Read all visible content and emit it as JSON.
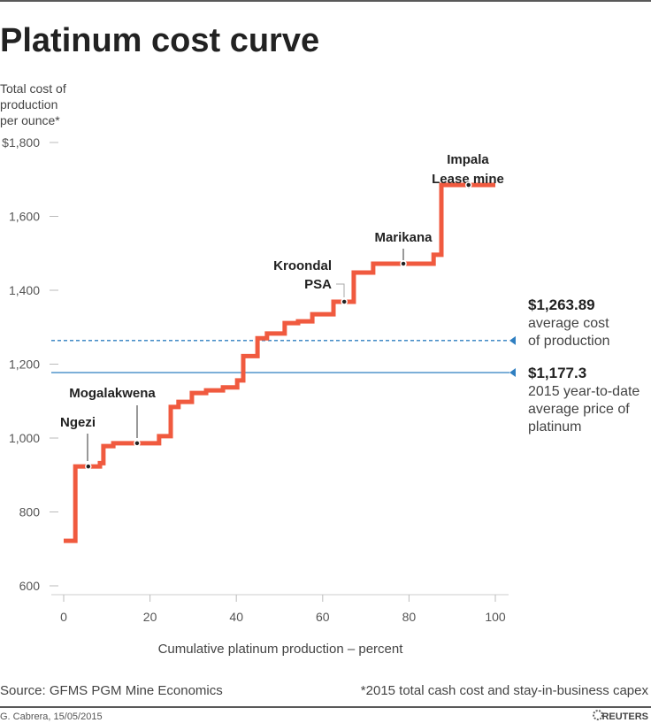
{
  "chart_data": {
    "type": "line",
    "style": "step",
    "title": "Platinum cost curve",
    "ylabel": [
      "Total cost of",
      "production",
      "per ounce*"
    ],
    "xlabel": "Cumulative platinum production – percent",
    "xlim": [
      0,
      100
    ],
    "ylim": [
      600,
      1800
    ],
    "xticks": [
      0,
      20,
      40,
      60,
      80,
      100
    ],
    "xtick_labels": [
      "0",
      "20",
      "40",
      "60",
      "80",
      "100"
    ],
    "yticks": [
      600,
      800,
      1000,
      1200,
      1400,
      1600,
      1800
    ],
    "ytick_labels": [
      "600",
      "800",
      "1,000",
      "1,200",
      "1,400",
      "1,600",
      "$1,800"
    ],
    "series": [
      {
        "color": "#f05a3f",
        "steps": [
          {
            "x_start": 0,
            "value": 722
          },
          {
            "x_start": 2.7,
            "value": 923
          },
          {
            "x_start": 8.4,
            "value": 932
          },
          {
            "x_start": 9.2,
            "value": 978
          },
          {
            "x_start": 11.5,
            "value": 986
          },
          {
            "x_start": 22.1,
            "value": 1005
          },
          {
            "x_start": 24.8,
            "value": 1084
          },
          {
            "x_start": 26.6,
            "value": 1098
          },
          {
            "x_start": 29.7,
            "value": 1122
          },
          {
            "x_start": 33.0,
            "value": 1129
          },
          {
            "x_start": 36.9,
            "value": 1137
          },
          {
            "x_start": 40.2,
            "value": 1156
          },
          {
            "x_start": 41.6,
            "value": 1222
          },
          {
            "x_start": 44.9,
            "value": 1270
          },
          {
            "x_start": 47.1,
            "value": 1283
          },
          {
            "x_start": 51.2,
            "value": 1311
          },
          {
            "x_start": 54.3,
            "value": 1316
          },
          {
            "x_start": 57.6,
            "value": 1335
          },
          {
            "x_start": 62.5,
            "value": 1369
          },
          {
            "x_start": 67.2,
            "value": 1448
          },
          {
            "x_start": 71.7,
            "value": 1472
          },
          {
            "x_start": 85.7,
            "value": 1496
          },
          {
            "x_start": 87.5,
            "value": 1685
          }
        ],
        "x_end": 100
      }
    ],
    "annotations": [
      {
        "label": [
          "Ngezi"
        ],
        "x": 5.7,
        "y": 923
      },
      {
        "label": [
          "Mogalakwena"
        ],
        "x": 17,
        "y": 986
      },
      {
        "label": [
          "Kroondal",
          "PSA"
        ],
        "x": 65,
        "y": 1369
      },
      {
        "label": [
          "Marikana"
        ],
        "x": 78.7,
        "y": 1472
      },
      {
        "label": [
          "Impala",
          "Lease mine"
        ],
        "x": 93.8,
        "y": 1685
      }
    ],
    "reference_lines": [
      {
        "value": 1263.89,
        "style": "dashed",
        "color": "#2f7fc1",
        "value_label": "$1,263.89",
        "text": [
          "average cost",
          "of production"
        ]
      },
      {
        "value": 1177.3,
        "style": "solid",
        "color": "#2f7fc1",
        "value_label": "$1,177.3",
        "text": [
          "2015 year-to-date",
          "average price of",
          "platinum"
        ]
      }
    ],
    "grid": false
  },
  "footer": {
    "source": "Source: GFMS PGM Mine Economics",
    "note": "*2015 total cash cost and stay-in-business capex",
    "credit": "G. Cabrera, 15/05/2015",
    "logo": "REUTERS"
  }
}
